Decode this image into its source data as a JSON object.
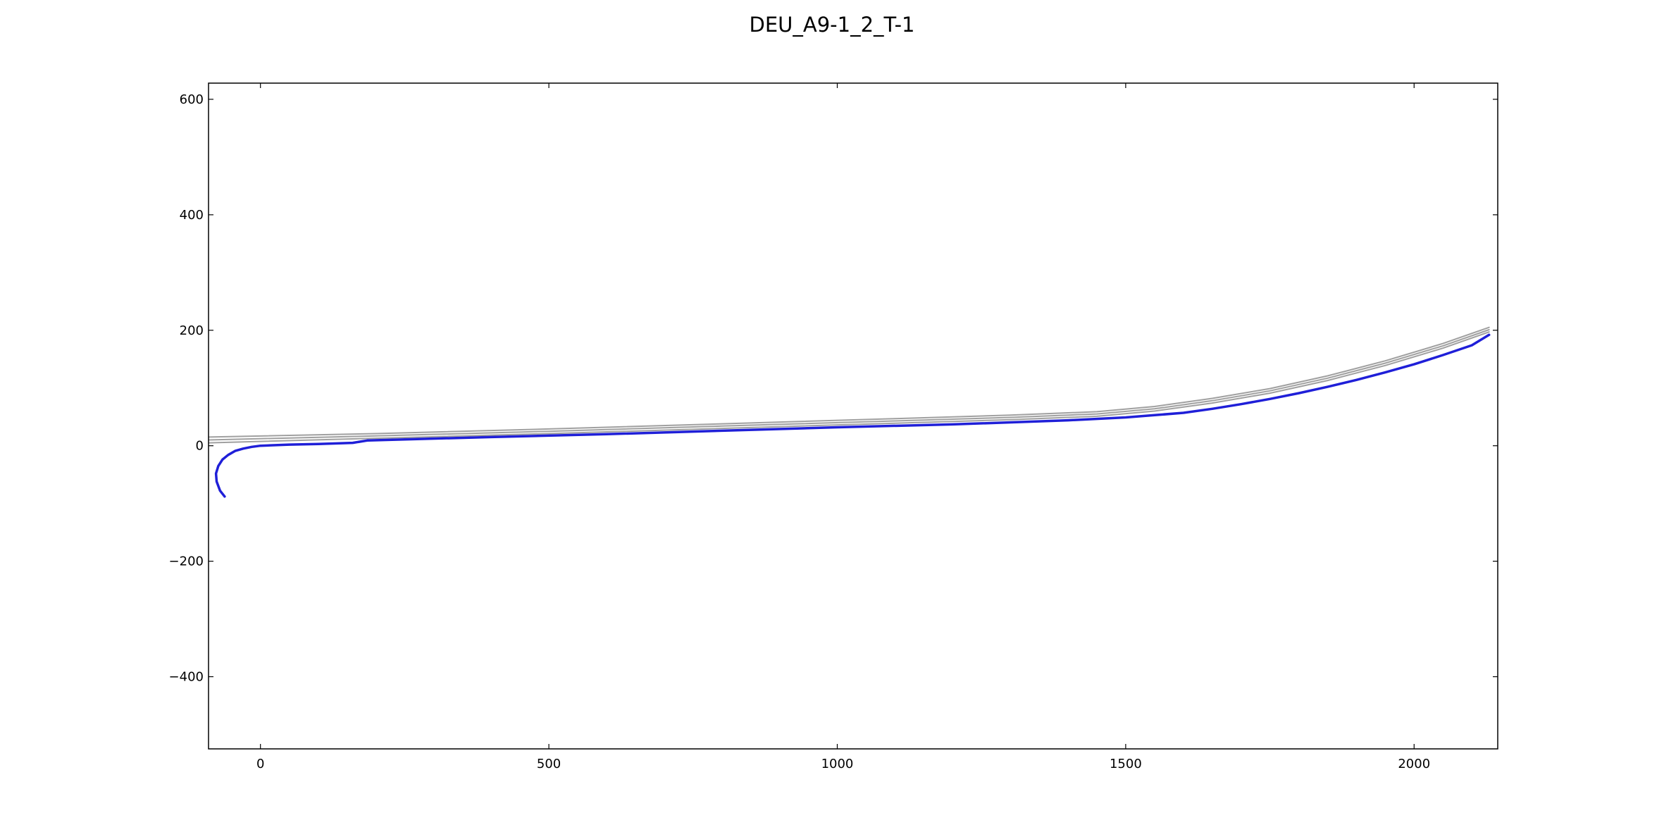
{
  "chart_data": {
    "type": "line",
    "title": "DEU_A9-1_2_T-1",
    "xlabel": "",
    "ylabel": "",
    "xlim": [
      -90,
      2145
    ],
    "ylim": [
      -525,
      628
    ],
    "x_ticks": [
      0,
      500,
      1000,
      1500,
      2000
    ],
    "x_tick_labels": [
      "0",
      "500",
      "1000",
      "1500",
      "2000"
    ],
    "y_ticks": [
      -400,
      -200,
      0,
      200,
      400,
      600
    ],
    "y_tick_labels": [
      "−400",
      "−200",
      "0",
      "200",
      "400",
      "600"
    ],
    "grid": false,
    "legend": "none",
    "series": [
      {
        "role": "lane",
        "color": "#a0a0a0",
        "points": [
          [
            -90,
            15
          ],
          [
            200,
            21
          ],
          [
            500,
            29
          ],
          [
            800,
            38
          ],
          [
            1100,
            47
          ],
          [
            1300,
            53
          ],
          [
            1450,
            59
          ],
          [
            1550,
            68
          ],
          [
            1650,
            82
          ],
          [
            1750,
            99
          ],
          [
            1850,
            121
          ],
          [
            1950,
            147
          ],
          [
            2050,
            177
          ],
          [
            2130,
            205
          ]
        ]
      },
      {
        "role": "lane",
        "color": "#a0a0a0",
        "points": [
          [
            -90,
            10
          ],
          [
            200,
            17
          ],
          [
            500,
            25
          ],
          [
            800,
            34
          ],
          [
            1100,
            43
          ],
          [
            1300,
            49
          ],
          [
            1450,
            55
          ],
          [
            1550,
            64
          ],
          [
            1650,
            78
          ],
          [
            1750,
            95
          ],
          [
            1850,
            117
          ],
          [
            1950,
            143
          ],
          [
            2050,
            173
          ],
          [
            2130,
            201
          ]
        ]
      },
      {
        "role": "lane",
        "color": "#a0a0a0",
        "points": [
          [
            -90,
            5
          ],
          [
            200,
            13
          ],
          [
            500,
            21
          ],
          [
            800,
            30
          ],
          [
            1100,
            39
          ],
          [
            1300,
            45
          ],
          [
            1450,
            51
          ],
          [
            1550,
            60
          ],
          [
            1650,
            74
          ],
          [
            1750,
            91
          ],
          [
            1850,
            113
          ],
          [
            1950,
            139
          ],
          [
            2050,
            169
          ],
          [
            2130,
            197
          ]
        ]
      },
      {
        "role": "trajectory",
        "color": "#1f1fd8",
        "points": [
          [
            -62,
            -88
          ],
          [
            -70,
            -78
          ],
          [
            -76,
            -62
          ],
          [
            -77,
            -48
          ],
          [
            -73,
            -35
          ],
          [
            -66,
            -24
          ],
          [
            -56,
            -16
          ],
          [
            -44,
            -9
          ],
          [
            -30,
            -5
          ],
          [
            -15,
            -2
          ],
          [
            0,
            0
          ],
          [
            50,
            2
          ],
          [
            100,
            3
          ],
          [
            160,
            5
          ],
          [
            185,
            9
          ],
          [
            250,
            11
          ],
          [
            400,
            15
          ],
          [
            600,
            20
          ],
          [
            800,
            26
          ],
          [
            1000,
            32
          ],
          [
            1200,
            37
          ],
          [
            1400,
            44
          ],
          [
            1500,
            49
          ],
          [
            1550,
            53
          ],
          [
            1600,
            57
          ],
          [
            1650,
            64
          ],
          [
            1700,
            72
          ],
          [
            1750,
            81
          ],
          [
            1800,
            91
          ],
          [
            1850,
            102
          ],
          [
            1900,
            114
          ],
          [
            1950,
            127
          ],
          [
            2000,
            141
          ],
          [
            2050,
            157
          ],
          [
            2100,
            174
          ],
          [
            2130,
            192
          ]
        ]
      }
    ]
  }
}
